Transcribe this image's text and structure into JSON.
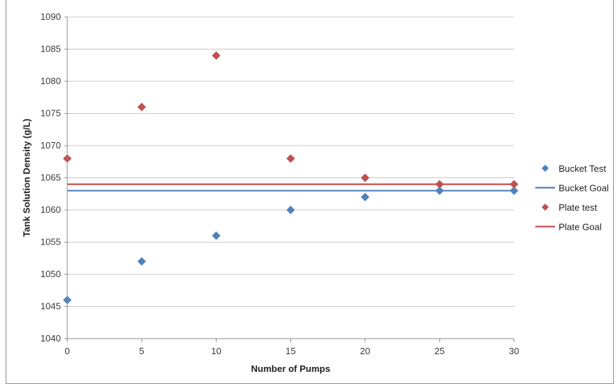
{
  "chart_data": {
    "type": "scatter",
    "xlabel": "Number of Pumps",
    "ylabel": "Tank Solution Density (g/L)",
    "xlim": [
      0,
      30
    ],
    "ylim": [
      1040,
      1090
    ],
    "xticks": [
      0,
      5,
      10,
      15,
      20,
      25,
      30
    ],
    "yticks": [
      1040,
      1045,
      1050,
      1055,
      1060,
      1065,
      1070,
      1075,
      1080,
      1085,
      1090
    ],
    "grid": "horizontal",
    "legend_position": "right",
    "series": [
      {
        "name": "Bucket Test",
        "kind": "markers",
        "marker": "diamond",
        "color": "#4f81bd",
        "x": [
          0,
          5,
          10,
          15,
          20,
          25,
          30
        ],
        "y": [
          1046,
          1052,
          1056,
          1060,
          1062,
          1063,
          1063
        ]
      },
      {
        "name": "Bucket Goal",
        "kind": "line",
        "color": "#4f81bd",
        "x": [
          0,
          30
        ],
        "y": [
          1063,
          1063
        ]
      },
      {
        "name": "Plate test",
        "kind": "markers",
        "marker": "diamond",
        "color": "#c0504d",
        "x": [
          0,
          5,
          10,
          15,
          20,
          25,
          30
        ],
        "y": [
          1068,
          1076,
          1084,
          1068,
          1065,
          1064,
          1064
        ]
      },
      {
        "name": "Plate Goal",
        "kind": "line",
        "color": "#c0504d",
        "x": [
          0,
          30
        ],
        "y": [
          1064,
          1064
        ]
      }
    ]
  }
}
